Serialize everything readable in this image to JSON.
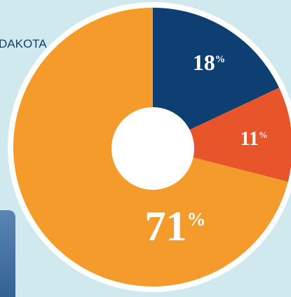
{
  "header": {
    "text": "DAKOTA"
  },
  "chart_data": {
    "type": "pie",
    "donut": true,
    "values": [
      18,
      11,
      71
    ],
    "value_labels": [
      "18%",
      "11%",
      "71%"
    ],
    "colors": [
      "#0e3f73",
      "#e8552b",
      "#f49b2b"
    ]
  }
}
